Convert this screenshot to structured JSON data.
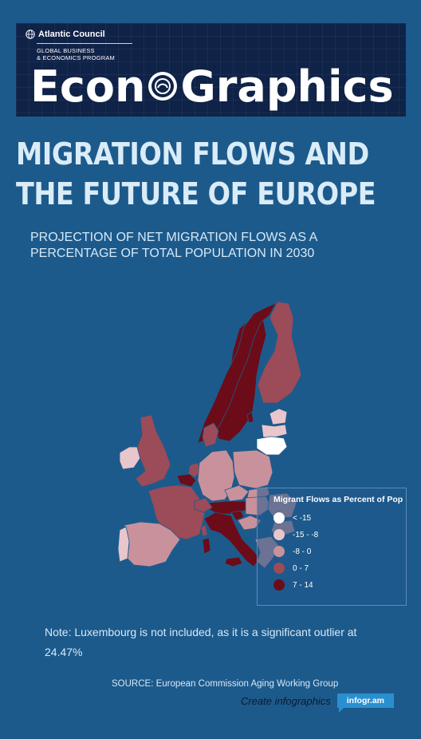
{
  "header": {
    "org": "Atlantic Council",
    "program_line1": "GLOBAL BUSINESS",
    "program_line2": "& ECONOMICS PROGRAM",
    "brand_left": "Econ",
    "brand_right": "Graphics"
  },
  "title_line1": "MIGRATION FLOWS AND",
  "title_line2": "THE FUTURE OF EUROPE",
  "subtitle": "PROJECTION OF NET MIGRATION FLOWS AS A PERCENTAGE OF TOTAL POPULATION  IN 2030",
  "chart_data": {
    "type": "choropleth-map",
    "region": "Europe",
    "measure": "Migrant Flows as Percent of Pop",
    "legend_title": "Migrant Flows as Percent of Pop",
    "legend_placement": "bottom-right",
    "bins": [
      {
        "label": "< -15",
        "color": "#ffffff"
      },
      {
        "label": "-15 - -8",
        "color": "#e8c6cc"
      },
      {
        "label": "-8 - 0",
        "color": "#c9919b"
      },
      {
        "label": "0 - 7",
        "color": "#9c4b58"
      },
      {
        "label": "7 - 14",
        "color": "#6b0c18"
      }
    ],
    "countries": [
      {
        "name": "Sweden",
        "bin": "7 - 14"
      },
      {
        "name": "Norway",
        "bin": "7 - 14"
      },
      {
        "name": "Finland",
        "bin": "0 - 7"
      },
      {
        "name": "Estonia",
        "bin": "-15 - -8"
      },
      {
        "name": "Latvia",
        "bin": "-15 - -8"
      },
      {
        "name": "Lithuania",
        "bin": "< -15"
      },
      {
        "name": "Denmark",
        "bin": "0 - 7"
      },
      {
        "name": "Ireland",
        "bin": "-15 - -8"
      },
      {
        "name": "United Kingdom",
        "bin": "0 - 7"
      },
      {
        "name": "Netherlands",
        "bin": "0 - 7"
      },
      {
        "name": "Belgium",
        "bin": "7 - 14"
      },
      {
        "name": "France",
        "bin": "0 - 7"
      },
      {
        "name": "Germany",
        "bin": "-8 - 0"
      },
      {
        "name": "Poland",
        "bin": "-8 - 0"
      },
      {
        "name": "Czech Republic",
        "bin": "-8 - 0"
      },
      {
        "name": "Slovakia",
        "bin": "-8 - 0"
      },
      {
        "name": "Austria",
        "bin": "7 - 14"
      },
      {
        "name": "Switzerland",
        "bin": "0 - 7"
      },
      {
        "name": "Italy",
        "bin": "7 - 14"
      },
      {
        "name": "Slovenia",
        "bin": "7 - 14"
      },
      {
        "name": "Hungary",
        "bin": "-8 - 0"
      },
      {
        "name": "Croatia",
        "bin": "-8 - 0"
      },
      {
        "name": "Romania",
        "bin": "-8 - 0"
      },
      {
        "name": "Bulgaria",
        "bin": "-8 - 0"
      },
      {
        "name": "Greece",
        "bin": "-8 - 0"
      },
      {
        "name": "Spain",
        "bin": "-8 - 0"
      },
      {
        "name": "Portugal",
        "bin": "-15 - -8"
      }
    ]
  },
  "note": "Note: Luxembourg is not included, as it is a significant outlier at 24.47%",
  "source": "SOURCE: European Commission Aging Working Group",
  "credit": {
    "text": "Create infographics",
    "badge": "infogr.am"
  }
}
